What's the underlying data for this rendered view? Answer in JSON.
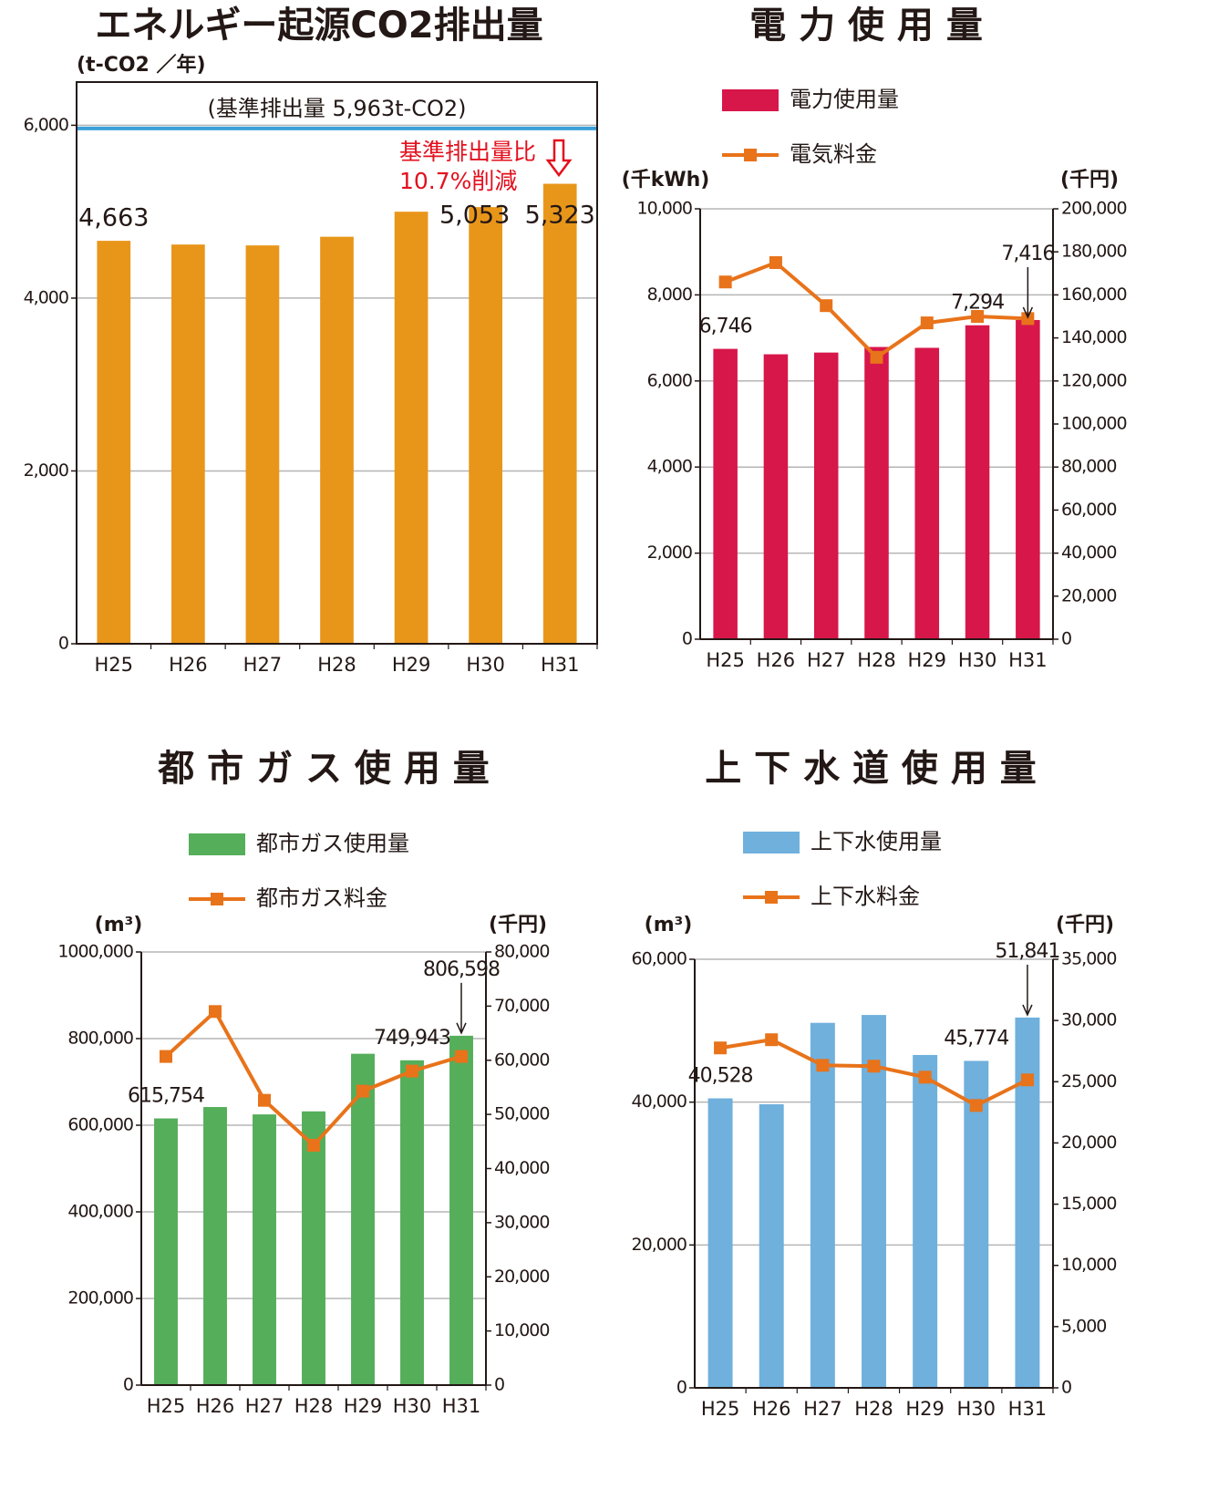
{
  "chart_data": [
    {
      "type": "bar",
      "title": "エネルギー起源CO2排出量",
      "ylabel": "(t-CO2 ／年)",
      "categories": [
        "H25",
        "H26",
        "H27",
        "H28",
        "H29",
        "H30",
        "H31"
      ],
      "series": [
        {
          "name": null,
          "color": "#e8961a",
          "values": [
            4663,
            4620,
            4610,
            4710,
            5000,
            5053,
            5323
          ],
          "value_labels": [
            "4,663",
            null,
            null,
            null,
            null,
            "5,053",
            "5,323"
          ]
        }
      ],
      "ylim": [
        0,
        6500
      ],
      "yticks": [
        0,
        {
          "value": 2000,
          "label": "2,000"
        },
        {
          "value": 4000,
          "label": "4,000"
        },
        {
          "value": 6000,
          "label": "6,000"
        }
      ],
      "grid": true,
      "reference": {
        "value": 5963,
        "label": "(基準排出量 5,963t-CO2)",
        "color": "#3aa0d8"
      },
      "annotations": [
        "基準排出量比",
        "10.7%削減"
      ],
      "annotation_color": "#e3101e"
    },
    {
      "type": "combo",
      "title": "電 力 使 用 量",
      "ylabel": "(千kWh)",
      "y2label": "(千円)",
      "categories": [
        "H25",
        "H26",
        "H27",
        "H28",
        "H29",
        "H30",
        "H31"
      ],
      "series": [
        {
          "name": "電力使用量",
          "color": "#d7164a",
          "values": [
            6746,
            6620,
            6660,
            6790,
            6770,
            7294,
            7416
          ],
          "value_labels": [
            "6,746",
            null,
            null,
            null,
            null,
            "7,294",
            "7,416"
          ]
        },
        {
          "name": "電気料金",
          "color": "#e8731a",
          "axis": "y2",
          "values": [
            166000,
            175000,
            155000,
            131000,
            147000,
            150000,
            149000
          ]
        }
      ],
      "ylim": [
        0,
        10000
      ],
      "yticks": [
        0,
        {
          "value": 2000,
          "label": "2,000"
        },
        {
          "value": 4000,
          "label": "4,000"
        },
        {
          "value": 6000,
          "label": "6,000"
        },
        {
          "value": 8000,
          "label": "8,000"
        },
        {
          "value": 10000,
          "label": "10,000"
        }
      ],
      "y2lim": [
        0,
        200000
      ],
      "y2ticks": [
        0,
        {
          "value": 20000,
          "label": "20,000"
        },
        {
          "value": 40000,
          "label": "40,000"
        },
        {
          "value": 60000,
          "label": "60,000"
        },
        {
          "value": 80000,
          "label": "80,000"
        },
        {
          "value": 100000,
          "label": "100,000"
        },
        {
          "value": 120000,
          "label": "120,000"
        },
        {
          "value": 140000,
          "label": "140,000"
        },
        {
          "value": 160000,
          "label": "160,000"
        },
        {
          "value": 180000,
          "label": "180,000"
        },
        {
          "value": 200000,
          "label": "200,000"
        }
      ],
      "grid": true,
      "legend": "top-left"
    },
    {
      "type": "combo",
      "title": "都 市 ガ ス 使 用 量",
      "ylabel": "(m³)",
      "y2label": "(千円)",
      "categories": [
        "H25",
        "H26",
        "H27",
        "H28",
        "H29",
        "H30",
        "H31"
      ],
      "series": [
        {
          "name": "都市ガス使用量",
          "color": "#55ae5a",
          "values": [
            615754,
            642000,
            625000,
            632000,
            765000,
            749943,
            806598
          ],
          "value_labels": [
            "615,754",
            null,
            null,
            null,
            null,
            "749,943",
            "806,598"
          ]
        },
        {
          "name": "都市ガス料金",
          "color": "#e8731a",
          "axis": "y2",
          "values": [
            60700,
            69000,
            52600,
            44300,
            54300,
            58000,
            60700
          ]
        }
      ],
      "ylim": [
        0,
        1000000
      ],
      "yticks": [
        0,
        {
          "value": 200000,
          "label": "200,000"
        },
        {
          "value": 400000,
          "label": "400,000"
        },
        {
          "value": 600000,
          "label": "600,000"
        },
        {
          "value": 800000,
          "label": "800,000"
        },
        {
          "value": 1000000,
          "label": "1000,000"
        }
      ],
      "y2lim": [
        0,
        80000
      ],
      "y2ticks": [
        0,
        {
          "value": 10000,
          "label": "10,000"
        },
        {
          "value": 20000,
          "label": "20,000"
        },
        {
          "value": 30000,
          "label": "30,000"
        },
        {
          "value": 40000,
          "label": "40,000"
        },
        {
          "value": 50000,
          "label": "50,000"
        },
        {
          "value": 60000,
          "label": "60,000"
        },
        {
          "value": 70000,
          "label": "70,000"
        },
        {
          "value": 80000,
          "label": "80,000"
        }
      ],
      "grid": true,
      "legend": "top-left"
    },
    {
      "type": "combo",
      "title": "上 下 水 道 使 用 量",
      "ylabel": "(m³)",
      "y2label": "(千円)",
      "categories": [
        "H25",
        "H26",
        "H27",
        "H28",
        "H29",
        "H30",
        "H31"
      ],
      "series": [
        {
          "name": "上下水使用量",
          "color": "#6fb0dd",
          "values": [
            40528,
            39700,
            51100,
            52200,
            46600,
            45774,
            51841
          ],
          "value_labels": [
            "40,528",
            null,
            null,
            null,
            null,
            "45,774",
            "51,841"
          ]
        },
        {
          "name": "上下水料金",
          "color": "#e8731a",
          "axis": "y2",
          "values": [
            27760,
            28430,
            26340,
            26270,
            25370,
            23060,
            25150
          ]
        }
      ],
      "ylim": [
        0,
        60000
      ],
      "yticks": [
        0,
        {
          "value": 20000,
          "label": "20,000"
        },
        {
          "value": 40000,
          "label": "40,000"
        },
        {
          "value": 60000,
          "label": "60,000"
        }
      ],
      "y2lim": [
        0,
        35000
      ],
      "y2ticks": [
        0,
        {
          "value": 5000,
          "label": "5,000"
        },
        {
          "value": 10000,
          "label": "10,000"
        },
        {
          "value": 15000,
          "label": "15,000"
        },
        {
          "value": 20000,
          "label": "20,000"
        },
        {
          "value": 25000,
          "label": "25,000"
        },
        {
          "value": 30000,
          "label": "30,000"
        },
        {
          "value": 35000,
          "label": "35,000"
        }
      ],
      "grid": true,
      "legend": "top-left"
    }
  ]
}
